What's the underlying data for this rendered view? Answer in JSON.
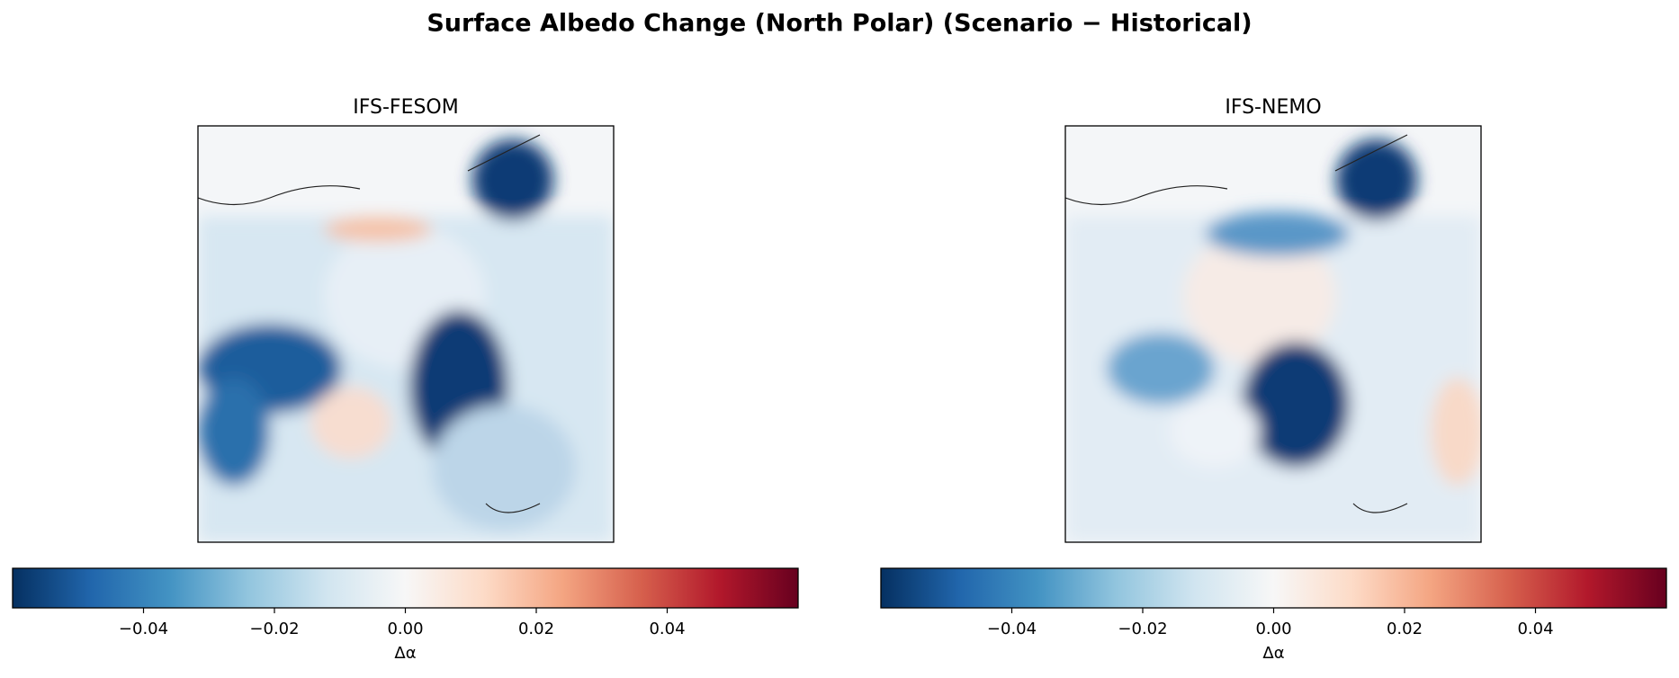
{
  "title": "Surface Albedo Change (North Polar) (Scenario − Historical)",
  "chart_data": [
    {
      "type": "map",
      "title": "IFS-FESOM",
      "colormap": [
        "#053061",
        "#2166ac",
        "#4393c3",
        "#92c5de",
        "#d1e5f0",
        "#f7f7f7",
        "#fddbc7",
        "#f4a582",
        "#d6604d",
        "#b2182b",
        "#67001f"
      ],
      "clim": [
        -0.06,
        0.06
      ],
      "cticks": [
        {
          "value": -0.04,
          "label": "−0.04"
        },
        {
          "value": -0.02,
          "label": "−0.02"
        },
        {
          "value": 0,
          "label": "0.00"
        },
        0.02,
        0.04
      ],
      "colorbar_label": "Δα"
    },
    {
      "type": "map",
      "title": "IFS-NEMO",
      "colormap": [
        "#053061",
        "#2166ac",
        "#4393c3",
        "#92c5de",
        "#d1e5f0",
        "#f7f7f7",
        "#fddbc7",
        "#f4a582",
        "#d6604d",
        "#b2182b",
        "#67001f"
      ],
      "clim": [
        -0.06,
        0.06
      ],
      "cticks": [
        {
          "value": -0.04,
          "label": "−0.04"
        },
        {
          "value": -0.02,
          "label": "−0.02"
        },
        {
          "value": 0,
          "label": "0.00"
        },
        0.02,
        0.04
      ],
      "colorbar_label": "Δα"
    }
  ]
}
